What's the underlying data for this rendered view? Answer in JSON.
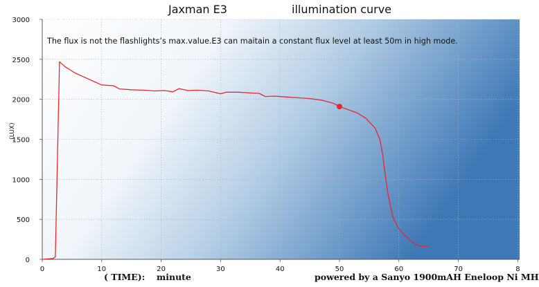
{
  "chart_data": {
    "type": "line",
    "title_left": "Jaxman E3",
    "title_right": "illumination curve",
    "note": "The flux is not the flashlights’s max.value.E3 can maitain a constant flux level at least 50m in high mode.",
    "ylabel": ".(LUX)",
    "xlabel_left": "( TIME):",
    "xlabel_unit": "minute",
    "footer": "powered by a Sanyo 1900mAH Eneloop Ni MH",
    "xlim": [
      0,
      80
    ],
    "ylim": [
      0,
      3000
    ],
    "x_ticks": [
      "0",
      "10",
      "20",
      "30",
      "40",
      "50",
      "60",
      "70",
      "8"
    ],
    "y_ticks": [
      "0",
      "500",
      "1000",
      "1500",
      "2000",
      "2500",
      "3000"
    ],
    "grid": true,
    "series": [
      {
        "color": "#e8262e",
        "points": [
          [
            0,
            0
          ],
          [
            1.8,
            10
          ],
          [
            2.2,
            30
          ],
          [
            2.9,
            2470
          ],
          [
            3.8,
            2410
          ],
          [
            5.5,
            2330
          ],
          [
            7,
            2280
          ],
          [
            8.5,
            2230
          ],
          [
            10,
            2180
          ],
          [
            12,
            2170
          ],
          [
            13,
            2130
          ],
          [
            15,
            2120
          ],
          [
            17,
            2115
          ],
          [
            19,
            2105
          ],
          [
            20.5,
            2110
          ],
          [
            22,
            2095
          ],
          [
            23,
            2135
          ],
          [
            24.5,
            2110
          ],
          [
            26,
            2115
          ],
          [
            28,
            2105
          ],
          [
            30,
            2070
          ],
          [
            31,
            2090
          ],
          [
            33,
            2090
          ],
          [
            35,
            2080
          ],
          [
            36.5,
            2075
          ],
          [
            37.5,
            2035
          ],
          [
            39,
            2040
          ],
          [
            41,
            2030
          ],
          [
            43,
            2020
          ],
          [
            45,
            2010
          ],
          [
            47,
            1990
          ],
          [
            49,
            1950
          ],
          [
            50,
            1910
          ],
          [
            51.5,
            1870
          ],
          [
            53,
            1830
          ],
          [
            54.5,
            1760
          ],
          [
            56,
            1640
          ],
          [
            56.8,
            1500
          ],
          [
            57.3,
            1300
          ],
          [
            57.7,
            1050
          ],
          [
            58.2,
            800
          ],
          [
            59,
            520
          ],
          [
            60,
            380
          ],
          [
            61,
            300
          ],
          [
            62,
            230
          ],
          [
            63,
            180
          ],
          [
            64,
            160
          ],
          [
            65,
            165
          ]
        ]
      }
    ],
    "marker": {
      "x": 50,
      "y": 1910,
      "color": "#e8262e"
    }
  }
}
